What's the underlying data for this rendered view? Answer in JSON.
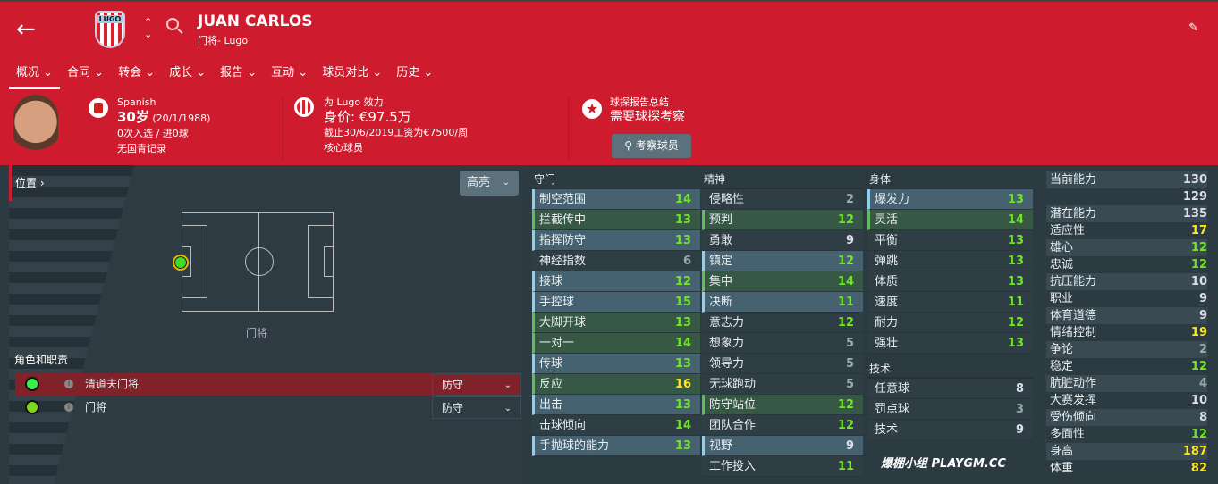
{
  "header": {
    "name": "JUAN CARLOS",
    "subtitle": "门将- Lugo",
    "club_badge": "LUGO"
  },
  "nav": [
    "概况 ⌄",
    "合同 ⌄",
    "转会 ⌄",
    "成长 ⌄",
    "报告 ⌄",
    "互动 ⌄",
    "球员对比 ⌄",
    "历史 ⌄"
  ],
  "info": {
    "nationality": "Spanish",
    "age": "30岁",
    "dob": "(20/1/1988)",
    "caps": "0次入选 / 进0球",
    "youth": "无国青记录",
    "plays_for": "为 Lugo 效力",
    "value": "身价: €97.5万",
    "contract": "截止30/6/2019工资为€7500/周",
    "status": "核心球员",
    "scout_title": "球探报告总结",
    "scout_value": "需要球探考察",
    "scout_button": "考察球员"
  },
  "position": {
    "label": "位置 ›",
    "highlight": "高亮",
    "position_name": "门将",
    "roles_label": "角色和职责",
    "roles": [
      {
        "name": "清道夫门将",
        "duty": "防守",
        "color": "#39f04a"
      },
      {
        "name": "门将",
        "duty": "防守",
        "color": "#7ed81a"
      }
    ]
  },
  "columns": [
    {
      "title": "守门",
      "attrs": [
        [
          "制空范围",
          14,
          "key"
        ],
        [
          "拦截传中",
          13,
          "pref"
        ],
        [
          "指挥防守",
          13,
          "key"
        ],
        [
          "神经指数",
          6,
          ""
        ],
        [
          "接球",
          12,
          "key"
        ],
        [
          "手控球",
          15,
          "key"
        ],
        [
          "大脚开球",
          13,
          "pref"
        ],
        [
          "一对一",
          14,
          "pref"
        ],
        [
          "传球",
          13,
          "key"
        ],
        [
          "反应",
          16,
          "pref"
        ],
        [
          "出击",
          13,
          "key"
        ],
        [
          "击球倾向",
          14,
          ""
        ],
        [
          "手抛球的能力",
          13,
          "key"
        ]
      ]
    },
    {
      "title": "精神",
      "attrs": [
        [
          "侵略性",
          2,
          ""
        ],
        [
          "预判",
          12,
          "pref"
        ],
        [
          "勇敢",
          9,
          ""
        ],
        [
          "镇定",
          12,
          "key"
        ],
        [
          "集中",
          14,
          "pref"
        ],
        [
          "决断",
          11,
          "key"
        ],
        [
          "意志力",
          12,
          ""
        ],
        [
          "想象力",
          5,
          ""
        ],
        [
          "领导力",
          5,
          ""
        ],
        [
          "无球跑动",
          5,
          ""
        ],
        [
          "防守站位",
          12,
          "pref"
        ],
        [
          "团队合作",
          12,
          ""
        ],
        [
          "视野",
          9,
          "key"
        ],
        [
          "工作投入",
          11,
          ""
        ]
      ]
    },
    {
      "title": "身体",
      "attrs": [
        [
          "爆发力",
          13,
          "key"
        ],
        [
          "灵活",
          14,
          "pref"
        ],
        [
          "平衡",
          13,
          ""
        ],
        [
          "弹跳",
          13,
          ""
        ],
        [
          "体质",
          13,
          ""
        ],
        [
          "速度",
          11,
          ""
        ],
        [
          "耐力",
          12,
          ""
        ],
        [
          "强壮",
          13,
          ""
        ]
      ]
    },
    {
      "title": "技术",
      "attrs": [
        [
          "任意球",
          8,
          ""
        ],
        [
          "罚点球",
          3,
          ""
        ],
        [
          "技术",
          9,
          ""
        ]
      ]
    }
  ],
  "right": [
    [
      "当前能力",
      "130"
    ],
    [
      "",
      "129"
    ],
    [
      "潜在能力",
      "135"
    ],
    [
      "适应性",
      "17"
    ],
    [
      "雄心",
      "12"
    ],
    [
      "忠诚",
      "12"
    ],
    [
      "抗压能力",
      "10"
    ],
    [
      "职业",
      "9"
    ],
    [
      "体育道德",
      "9"
    ],
    [
      "情绪控制",
      "19"
    ],
    [
      "争论",
      "2"
    ],
    [
      "稳定",
      "12"
    ],
    [
      "肮脏动作",
      "4"
    ],
    [
      "大赛发挥",
      "10"
    ],
    [
      "受伤倾向",
      "8"
    ],
    [
      "多面性",
      "12"
    ],
    [
      "身高",
      "187"
    ],
    [
      "体重",
      "82"
    ]
  ],
  "watermark": "爆棚小组 PLAYGM.CC"
}
